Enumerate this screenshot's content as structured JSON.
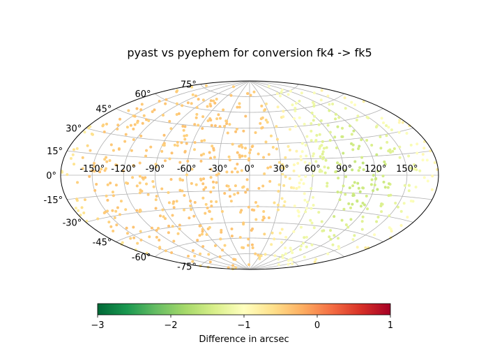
{
  "chart_data": {
    "type": "scatter",
    "projection": "aitoff",
    "title": "pyast vs pyephem for conversion fk4 -> fk5",
    "grid": true,
    "lon_ticks": [
      "-150°",
      "-120°",
      "-90°",
      "-60°",
      "-30°",
      "0°",
      "30°",
      "60°",
      "90°",
      "120°",
      "150°"
    ],
    "lat_ticks": [
      "75°",
      "60°",
      "45°",
      "30°",
      "15°",
      "0°",
      "-15°",
      "-30°",
      "-45°",
      "-60°",
      "-75°"
    ],
    "colorbar": {
      "label": "Difference in arcsec",
      "cmap": "RdYlGn_r",
      "range": [
        -3,
        1
      ],
      "tick_labels": [
        "−3",
        "−2",
        "−1",
        "0",
        "1"
      ]
    },
    "marker_color": "#f39a54",
    "points": {
      "count": 800,
      "x_range_deg": [
        -180,
        180
      ],
      "y_range_deg": [
        -90,
        90
      ],
      "value_range": [
        -1.8,
        -0.3
      ]
    }
  }
}
